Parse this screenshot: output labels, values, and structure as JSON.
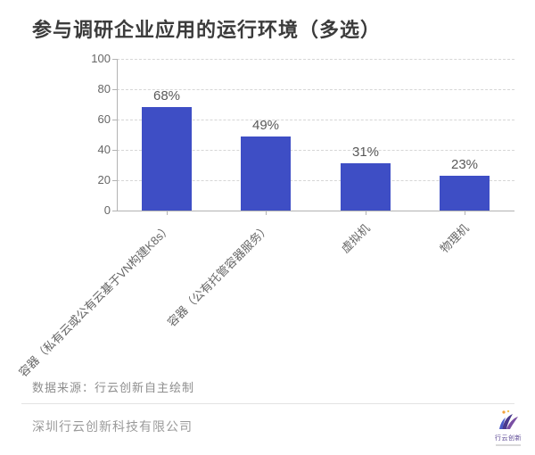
{
  "page_title": "参与调研企业应用的运行环境（多选）",
  "chart_data": {
    "type": "bar",
    "title": "参与调研企业应用的运行环境（多选）",
    "categories": [
      "容器（私有云或公有云基于VN构建K8s）",
      "容器（公有托管容器服务）",
      "虚拟机",
      "物理机"
    ],
    "values": [
      68,
      49,
      31,
      23
    ],
    "value_labels": [
      "68%",
      "49%",
      "31%",
      "23%"
    ],
    "unit": "%",
    "yticks": [
      "100",
      "80",
      "60",
      "40",
      "20",
      "0"
    ],
    "ylim": [
      0,
      100
    ],
    "grid": "horizontal-dashed",
    "legend": "none",
    "bar_color": "#3e4ec5",
    "axis_color": "#b3b3b3",
    "gridline_color": "#d6d6d6",
    "label_color": "#666666"
  },
  "footer": {
    "source_note": "数据来源：行云创新自主绘制",
    "company": "深圳行云创新科技有限公司",
    "logo_text": "行云创新"
  }
}
